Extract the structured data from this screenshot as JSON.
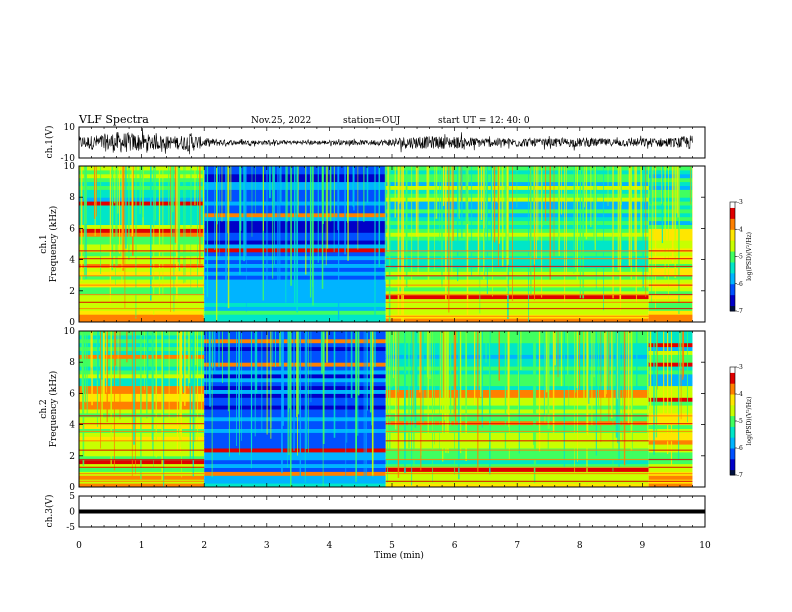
{
  "header": {
    "title": "VLF Spectra",
    "date": "Nov.25, 2022",
    "station": "station=OUJ",
    "start": "start  UT =   12: 40: 0"
  },
  "colors": {
    "colormap": [
      "#001040",
      "#0000c8",
      "#0050ff",
      "#00b4ff",
      "#00e6c8",
      "#40ff60",
      "#c8ff00",
      "#ffe600",
      "#ff8000",
      "#e00000",
      "#ffffff"
    ]
  },
  "chart_data": [
    {
      "type": "line",
      "panel": "waveform-ch1",
      "ylabel": "ch.1(V)",
      "ylim": [
        -10,
        10
      ],
      "yticks": [
        "10",
        "-10"
      ],
      "x": [
        0,
        0.3,
        0.6,
        0.9,
        1.2,
        1.5,
        1.8,
        2.0,
        2.5,
        3.0,
        3.5,
        4.0,
        4.5,
        4.9,
        5.2,
        5.5,
        6.0,
        6.5,
        7.0,
        7.5,
        8.0,
        8.5,
        9.0,
        9.5,
        9.8
      ],
      "y_envelope": [
        4,
        5,
        7,
        6,
        5,
        4,
        6,
        3,
        1.5,
        1.5,
        1.2,
        1.5,
        1.5,
        2,
        4,
        4,
        4,
        3,
        3,
        2.5,
        3,
        2.5,
        3,
        3,
        5
      ],
      "xlim": [
        0,
        10
      ]
    },
    {
      "type": "heatmap",
      "panel": "spectrogram-ch1",
      "ylabel": "ch.1\nFrequency (kHz)",
      "ylim": [
        0,
        10
      ],
      "yticks": [
        "0",
        "2",
        "4",
        "6",
        "8",
        "10"
      ],
      "xlim": [
        0,
        10
      ],
      "colorbar": {
        "label": "log(PSD)(V²/Hz)",
        "range": [
          -7,
          -3
        ],
        "ticks": [
          "-3",
          "-4",
          "-5",
          "-6",
          "-7"
        ]
      },
      "segments": [
        {
          "x": [
            0,
            2.0
          ],
          "level": "high"
        },
        {
          "x": [
            2.0,
            4.9
          ],
          "level": "low"
        },
        {
          "x": [
            4.9,
            9.1
          ],
          "level": "medium"
        },
        {
          "x": [
            9.1,
            9.8
          ],
          "level": "high"
        }
      ]
    },
    {
      "type": "heatmap",
      "panel": "spectrogram-ch2",
      "ylabel": "ch.2\nFrequency (kHz)",
      "ylim": [
        0,
        10
      ],
      "yticks": [
        "0",
        "2",
        "4",
        "6",
        "8",
        "10"
      ],
      "xlim": [
        0,
        10
      ],
      "colorbar": {
        "label": "log(PSD)(V²/Hz)",
        "range": [
          -7,
          -3
        ],
        "ticks": [
          "-3",
          "-4",
          "-5",
          "-6",
          "-7"
        ]
      },
      "segments": [
        {
          "x": [
            0,
            2.0
          ],
          "level": "high"
        },
        {
          "x": [
            2.0,
            4.9
          ],
          "level": "low"
        },
        {
          "x": [
            4.9,
            9.1
          ],
          "level": "medium"
        },
        {
          "x": [
            9.1,
            9.8
          ],
          "level": "high"
        }
      ]
    },
    {
      "type": "line",
      "panel": "waveform-ch3",
      "ylabel": "ch.3(V)",
      "ylim": [
        -5,
        5
      ],
      "yticks": [
        "5",
        "0",
        "-5"
      ],
      "x": [
        0,
        10
      ],
      "y": [
        0,
        0
      ],
      "xlim": [
        0,
        10
      ]
    }
  ],
  "xaxis": {
    "label": "Time (min)",
    "ticks": [
      "0",
      "1",
      "2",
      "3",
      "4",
      "5",
      "6",
      "7",
      "8",
      "9",
      "10"
    ]
  }
}
